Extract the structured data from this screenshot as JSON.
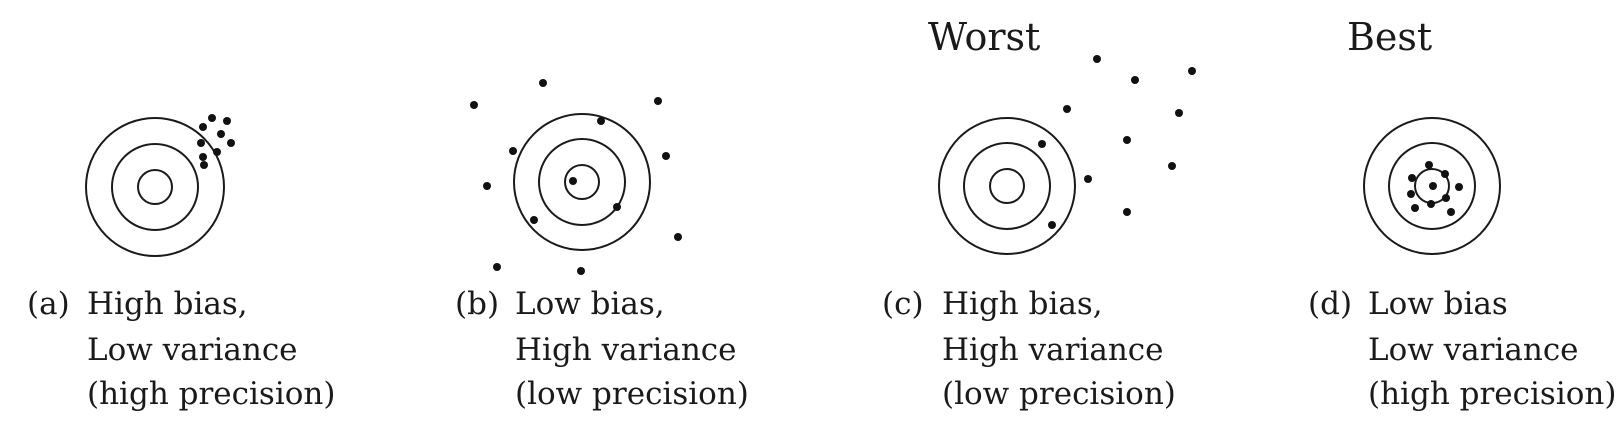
{
  "headings": {
    "worst": "Worst",
    "best": "Best"
  },
  "panels": [
    {
      "tag": "(a)",
      "line1": "High bias,",
      "line2": "Low variance",
      "line3": "(high precision)"
    },
    {
      "tag": "(b)",
      "line1": "Low bias,",
      "line2": "High variance",
      "line3": "(low precision)"
    },
    {
      "tag": "(c)",
      "line1": "High bias,",
      "line2": "High variance",
      "line3": "(low precision)"
    },
    {
      "tag": "(d)",
      "line1": "Low bias",
      "line2": "Low variance",
      "line3": "(high precision)"
    }
  ]
}
